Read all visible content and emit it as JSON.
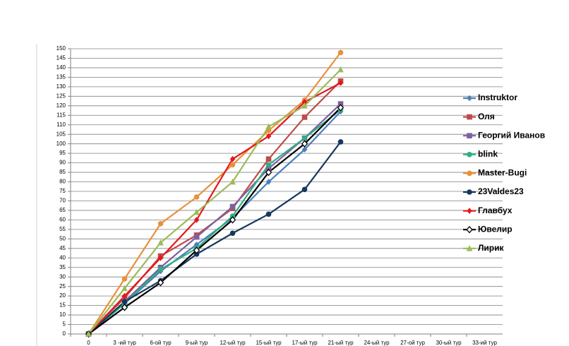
{
  "chart_data": {
    "type": "line",
    "categories": [
      "0",
      "3 -ий тур",
      "6-ой тур",
      "9-ый тур",
      "12-ый тур",
      "15-ый тур",
      "17-ый тур",
      "21-ый тур",
      "24-ый тур",
      "27-ой тур",
      "30-ый тур",
      "33-ий тур"
    ],
    "ylim": [
      0,
      150
    ],
    "yticks": [
      0,
      5,
      10,
      15,
      20,
      25,
      30,
      35,
      40,
      45,
      50,
      55,
      60,
      65,
      70,
      75,
      80,
      85,
      90,
      95,
      100,
      105,
      110,
      115,
      120,
      125,
      130,
      135,
      140,
      145,
      150
    ],
    "grid": true,
    "legend": "right",
    "series": [
      {
        "name": "Instruktor",
        "color": "#4a7ebb",
        "marker": "diamond",
        "values": [
          0,
          16,
          33,
          47,
          61,
          80,
          97,
          117,
          null,
          null,
          null,
          null
        ]
      },
      {
        "name": "Оля",
        "color": "#be4b48",
        "marker": "square",
        "values": [
          0,
          19,
          41,
          52,
          66,
          92,
          114,
          133,
          null,
          null,
          null,
          null
        ]
      },
      {
        "name": "Георгий Иванов",
        "color": "#7d60a0",
        "marker": "square",
        "values": [
          0,
          17,
          35,
          51,
          67,
          87,
          103,
          121,
          null,
          null,
          null,
          null
        ]
      },
      {
        "name": "blink",
        "color": "#2fae84",
        "marker": "circle",
        "values": [
          0,
          16,
          34,
          45,
          62,
          89,
          103,
          118,
          null,
          null,
          null,
          null
        ]
      },
      {
        "name": "Master-Bugi",
        "color": "#e8913a",
        "marker": "circle",
        "values": [
          0,
          29,
          58,
          72,
          89,
          107,
          123,
          148,
          null,
          null,
          null,
          null
        ]
      },
      {
        "name": "23Valdes23",
        "color": "#17375e",
        "marker": "circle",
        "values": [
          0,
          17,
          28,
          42,
          53,
          63,
          76,
          101,
          null,
          null,
          null,
          null
        ]
      },
      {
        "name": "Главбух",
        "color": "#e3191b",
        "marker": "diamond",
        "values": [
          0,
          20,
          40,
          60,
          92,
          104,
          122,
          132,
          null,
          null,
          null,
          null
        ]
      },
      {
        "name": "Ювелир",
        "color": "#000000",
        "marker": "open-diamond",
        "values": [
          0,
          14,
          27,
          44,
          60,
          85,
          100,
          119,
          null,
          null,
          null,
          null
        ]
      },
      {
        "name": "Лирик",
        "color": "#9bbb59",
        "marker": "triangle",
        "values": [
          0,
          24,
          48,
          64,
          80,
          109,
          120,
          139,
          null,
          null,
          null,
          null
        ]
      }
    ]
  }
}
